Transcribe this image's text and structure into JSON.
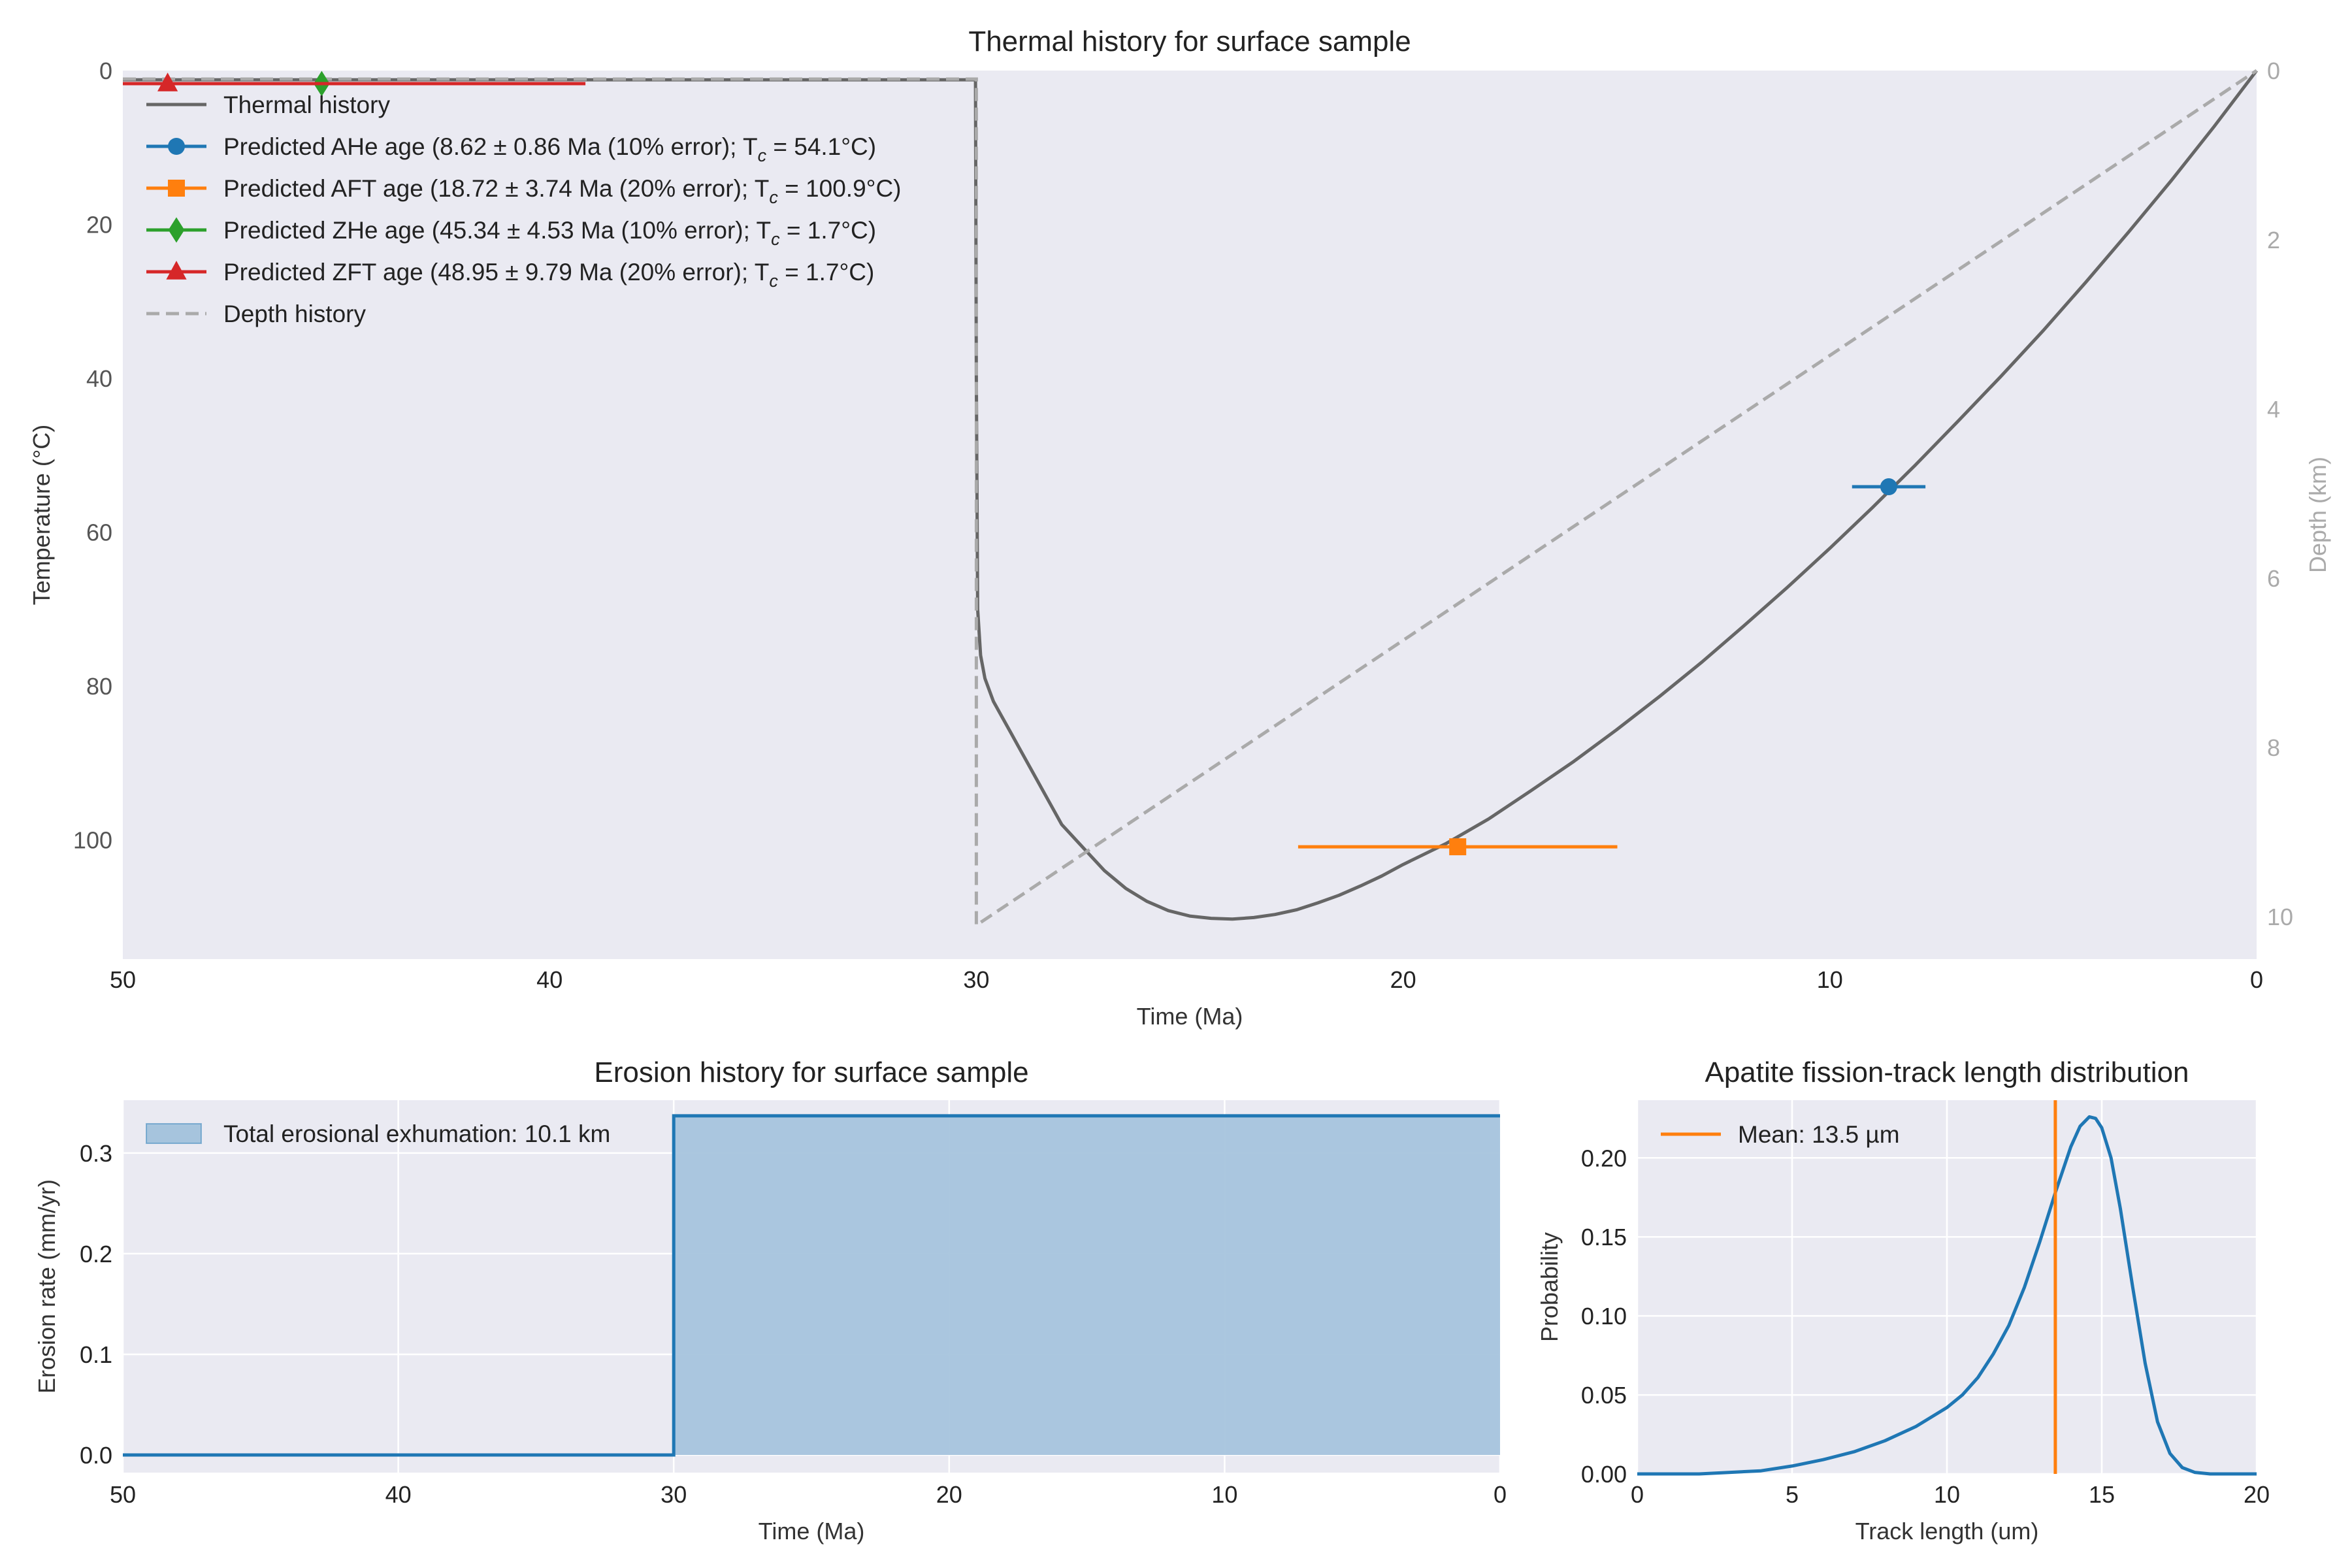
{
  "colors": {
    "thermal": "#666666",
    "ahe": "#1f77b4",
    "aft": "#ff7f0e",
    "zhe": "#2ca02c",
    "zft": "#d62728",
    "depth": "#aaaaaa",
    "erosion_line": "#1f77b4",
    "erosion_fill": "#a6c4dd",
    "track": "#1f77b4",
    "mean": "#ff7f0e",
    "plot_bg": "#eaeaf2"
  },
  "chart_data": [
    {
      "type": "line",
      "title": "Thermal history for surface sample",
      "xlabel": "Time (Ma)",
      "ylabel": "Temperature (°C)",
      "y2label": "Depth (km)",
      "xlim": [
        50,
        0
      ],
      "ylim": [
        115.5,
        0
      ],
      "y2lim": [
        10.5,
        0
      ],
      "xticks": [
        50,
        40,
        30,
        20,
        10,
        0
      ],
      "yticks": [
        0,
        20,
        40,
        60,
        80,
        100
      ],
      "y2ticks": [
        0,
        2,
        4,
        6,
        8,
        10
      ],
      "grid": false,
      "legend_position": "top-left",
      "legend": [
        {
          "marker": "line",
          "text": "Thermal history",
          "text_suffix": ""
        },
        {
          "marker": "circle",
          "text": "Predicted AHe age (8.62 ± 0.86 Ma (10% error); T",
          "sub": "c",
          "text_suffix": " = 54.1°C)"
        },
        {
          "marker": "square",
          "text": "Predicted AFT age (18.72 ± 3.74 Ma (20% error); T",
          "sub": "c",
          "text_suffix": " = 100.9°C)"
        },
        {
          "marker": "diamond",
          "text": "Predicted ZHe age (45.34 ± 4.53 Ma (10% error); T",
          "sub": "c",
          "text_suffix": " = 1.7°C)"
        },
        {
          "marker": "triangle",
          "text": "Predicted ZFT age (48.95 ± 9.79 Ma (20% error); T",
          "sub": "c",
          "text_suffix": " = 1.7°C)"
        },
        {
          "marker": "dashed",
          "text": "Depth history",
          "text_suffix": ""
        }
      ],
      "series": [
        {
          "name": "Thermal history",
          "x": [
            50,
            30.02,
            30,
            29.97,
            29.9,
            29.8,
            29.6,
            29.4,
            29.2,
            29,
            28.7,
            28.3,
            28,
            27.5,
            27,
            26.5,
            26,
            25.5,
            25,
            24.5,
            24,
            23.5,
            23,
            22.5,
            22,
            21.5,
            21,
            20.5,
            20,
            19,
            18,
            17,
            16,
            15,
            14,
            13,
            12,
            11,
            10,
            9,
            8,
            7,
            6,
            5,
            4,
            3,
            2,
            1,
            0
          ],
          "y": [
            1.2,
            1.2,
            40,
            70,
            76,
            79,
            82,
            84,
            86,
            88,
            91,
            95,
            98,
            101,
            104,
            106.3,
            108,
            109.2,
            109.9,
            110.2,
            110.3,
            110.1,
            109.7,
            109.1,
            108.2,
            107.2,
            106,
            104.7,
            103.2,
            100.5,
            97.3,
            93.6,
            89.8,
            85.7,
            81.4,
            76.9,
            72.1,
            67.2,
            62.1,
            56.8,
            51.3,
            45.6,
            39.8,
            33.8,
            27.5,
            21,
            14.3,
            7.3,
            0
          ]
        },
        {
          "name": "Depth history",
          "x": [
            50,
            30,
            30,
            0
          ],
          "y": [
            0.1,
            0.1,
            10.1,
            0
          ]
        }
      ],
      "ages": [
        {
          "name": "AHe",
          "age": 8.62,
          "err": 0.86,
          "tc": 54.1,
          "marker": "circle"
        },
        {
          "name": "AFT",
          "age": 18.72,
          "err": 3.74,
          "tc": 100.9,
          "marker": "square"
        },
        {
          "name": "ZHe",
          "age": 45.34,
          "err": 4.53,
          "tc": 1.7,
          "marker": "diamond"
        },
        {
          "name": "ZFT",
          "age": 48.95,
          "err": 9.79,
          "tc": 1.7,
          "marker": "triangle"
        }
      ]
    },
    {
      "type": "area",
      "title": "Erosion history for surface sample",
      "xlabel": "Time (Ma)",
      "ylabel": "Erosion rate (mm/yr)",
      "xlim": [
        50,
        0
      ],
      "ylim": [
        -0.0175,
        0.3525
      ],
      "xticks": [
        50,
        40,
        30,
        20,
        10,
        0
      ],
      "yticks": [
        0.0,
        0.1,
        0.2,
        0.3
      ],
      "ytick_labels": [
        "0.0",
        "0.1",
        "0.2",
        "0.3"
      ],
      "grid": true,
      "legend_position": "top-left",
      "legend": [
        {
          "marker": "patch",
          "text": "Total erosional exhumation: 10.1 km"
        }
      ],
      "series": [
        {
          "x": [
            50,
            30,
            30,
            0
          ],
          "y": [
            0,
            0,
            0.337,
            0.337
          ]
        }
      ]
    },
    {
      "type": "line",
      "title": "Apatite fission-track length distribution",
      "xlabel": "Track length (um)",
      "ylabel": "Probability",
      "xlim": [
        0,
        20
      ],
      "ylim": [
        0,
        0.2365
      ],
      "xticks": [
        0,
        5,
        10,
        15,
        20
      ],
      "yticks": [
        0,
        0.05,
        0.1,
        0.15,
        0.2
      ],
      "ytick_labels": [
        "0.00",
        "0.05",
        "0.10",
        "0.15",
        "0.20"
      ],
      "grid": true,
      "legend_position": "top-left",
      "legend": [
        {
          "marker": "line",
          "text": "Mean: 13.5 µm"
        }
      ],
      "mean": 13.5,
      "series": [
        {
          "x": [
            0,
            2,
            3,
            4,
            5,
            6,
            7,
            8,
            9,
            10,
            10.5,
            11,
            11.5,
            12,
            12.5,
            13,
            13.5,
            14,
            14.3,
            14.6,
            14.8,
            15,
            15.3,
            15.6,
            16,
            16.4,
            16.8,
            17.2,
            17.6,
            18,
            18.5,
            19,
            20
          ],
          "y": [
            0,
            0,
            0.001,
            0.002,
            0.005,
            0.009,
            0.014,
            0.021,
            0.03,
            0.042,
            0.05,
            0.061,
            0.076,
            0.094,
            0.118,
            0.147,
            0.178,
            0.207,
            0.22,
            0.226,
            0.225,
            0.219,
            0.2,
            0.168,
            0.118,
            0.07,
            0.033,
            0.013,
            0.004,
            0.001,
            0,
            0,
            0
          ]
        }
      ]
    }
  ]
}
